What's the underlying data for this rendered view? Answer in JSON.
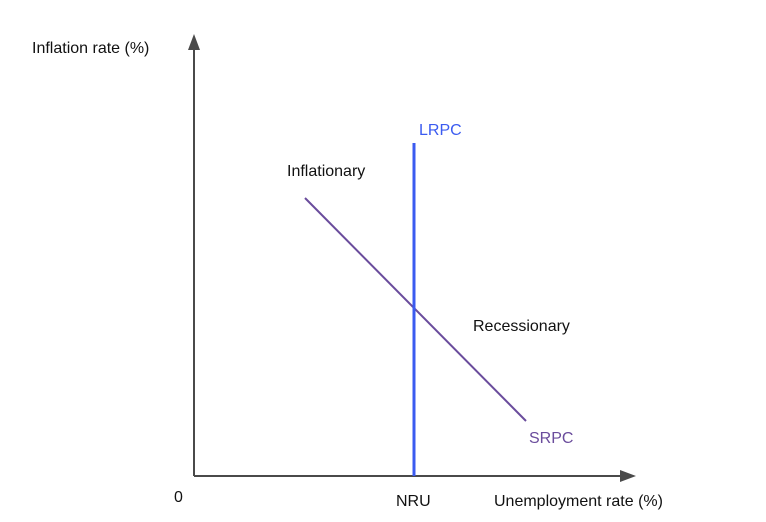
{
  "axes": {
    "y_label": "Inflation rate (%)",
    "x_label": "Unemployment rate (%)",
    "origin_label": "0",
    "x_tick_label": "NRU"
  },
  "curves": {
    "lrpc": {
      "label": "LRPC",
      "color": "#3B5BF0"
    },
    "srpc": {
      "label": "SRPC",
      "color": "#6A4C9C"
    }
  },
  "regions": {
    "upper_left": "Inflationary",
    "lower_right": "Recessionary"
  },
  "colors": {
    "axis": "#4a4a4a",
    "text": "#111111"
  }
}
